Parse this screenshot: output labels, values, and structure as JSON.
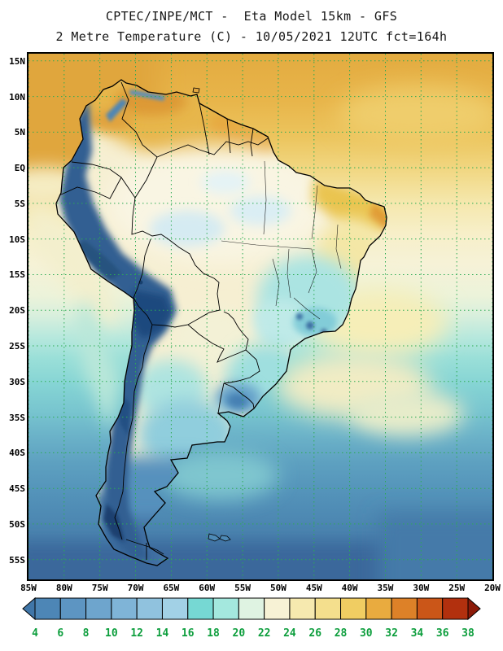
{
  "header": {
    "title_line1": "CPTEC/INPE/MCT -  Eta Model 15km - GFS",
    "title_line2": "2 Metre Temperature (C) - 10/05/2021 12UTC fct=164h"
  },
  "map": {
    "lat_labels": [
      "15N",
      "10N",
      "5N",
      "EQ",
      "5S",
      "10S",
      "15S",
      "20S",
      "25S",
      "30S",
      "35S",
      "40S",
      "45S",
      "50S",
      "55S"
    ],
    "lon_labels": [
      "85W",
      "80W",
      "75W",
      "70W",
      "65W",
      "60W",
      "55W",
      "50W",
      "45W",
      "40W",
      "35W",
      "30W",
      "25W",
      "20W"
    ],
    "grid_color": "#2cab53",
    "coast_color": "#000000"
  },
  "colorbar": {
    "tick_labels": [
      "4",
      "6",
      "8",
      "10",
      "12",
      "14",
      "16",
      "18",
      "20",
      "22",
      "24",
      "26",
      "28",
      "30",
      "32",
      "34",
      "36",
      "38"
    ],
    "segment_colors": [
      "#4076a8",
      "#4d86b6",
      "#5d95c2",
      "#6ea5cd",
      "#7fb4d7",
      "#90c2de",
      "#a2d1e6",
      "#76d8d3",
      "#a4e8de",
      "#dff3e2",
      "#f7f2d5",
      "#f6e9af",
      "#f4df8d",
      "#f0cd62",
      "#e9ab3f",
      "#dd8128",
      "#cb5618",
      "#b2300e",
      "#8c1a08"
    ],
    "label_color": "#0d9e3d"
  }
}
